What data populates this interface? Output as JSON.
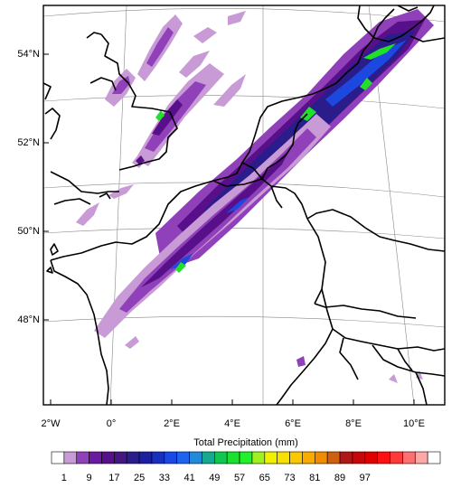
{
  "map": {
    "lat_labels": [
      "54°N",
      "52°N",
      "50°N",
      "48°N"
    ],
    "lon_labels": [
      "2°W",
      "0°",
      "2°E",
      "4°E",
      "6°E",
      "8°E",
      "10°E"
    ]
  },
  "colorbar": {
    "title": "Total Precipitation  (mm)",
    "tick_labels": [
      "1",
      "9",
      "17",
      "25",
      "33",
      "41",
      "49",
      "57",
      "65",
      "73",
      "81",
      "89",
      "97"
    ],
    "colors": [
      "#ffffff",
      "#c89ad6",
      "#9040b8",
      "#6a1aa0",
      "#580f8a",
      "#441680",
      "#2b1c8c",
      "#1b1fa0",
      "#1730c0",
      "#1a48e6",
      "#1d63f0",
      "#1f8ad8",
      "#16a890",
      "#10c850",
      "#1ae030",
      "#22f02a",
      "#a0f020",
      "#f0f000",
      "#f8e000",
      "#f8c800",
      "#f8ac00",
      "#f08c00",
      "#d06010",
      "#b01818",
      "#c80808",
      "#e00000",
      "#ff1010",
      "#ff3838",
      "#ff7070",
      "#ffa8a8",
      "#ffffff"
    ]
  },
  "precip_colors": {
    "light": "#c89ad6",
    "medium": "#9040b8",
    "dark": "#580f8a",
    "deep": "#2b1c8c",
    "blue": "#1d48e0",
    "cyan": "#1f8ad8",
    "green": "#22e02a"
  }
}
